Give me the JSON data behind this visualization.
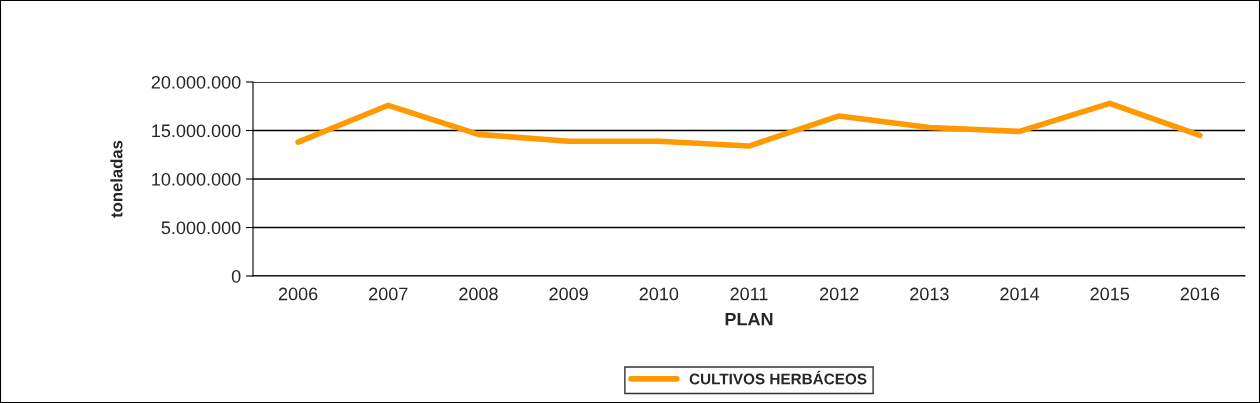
{
  "chart_data": {
    "type": "line",
    "xlabel": "PLAN",
    "ylabel": "toneladas",
    "categories": [
      "2006",
      "2007",
      "2008",
      "2009",
      "2010",
      "2011",
      "2012",
      "2013",
      "2014",
      "2015",
      "2016"
    ],
    "series": [
      {
        "name": "CULTIVOS HERBÁCEOS",
        "color": "#ff9900",
        "values": [
          13800000,
          17600000,
          14600000,
          13900000,
          13900000,
          13400000,
          16500000,
          15300000,
          14900000,
          17800000,
          14500000
        ]
      }
    ],
    "ylim": [
      0,
      20000000
    ],
    "yticks": [
      {
        "value": 0,
        "label": "0"
      },
      {
        "value": 5000000,
        "label": "5.000.000"
      },
      {
        "value": 10000000,
        "label": "10.000.000"
      },
      {
        "value": 15000000,
        "label": "15.000.000"
      },
      {
        "value": 20000000,
        "label": "20.000.000"
      }
    ],
    "grid": "y",
    "legend": "bottom",
    "marker": "none",
    "line_style": "solid"
  }
}
